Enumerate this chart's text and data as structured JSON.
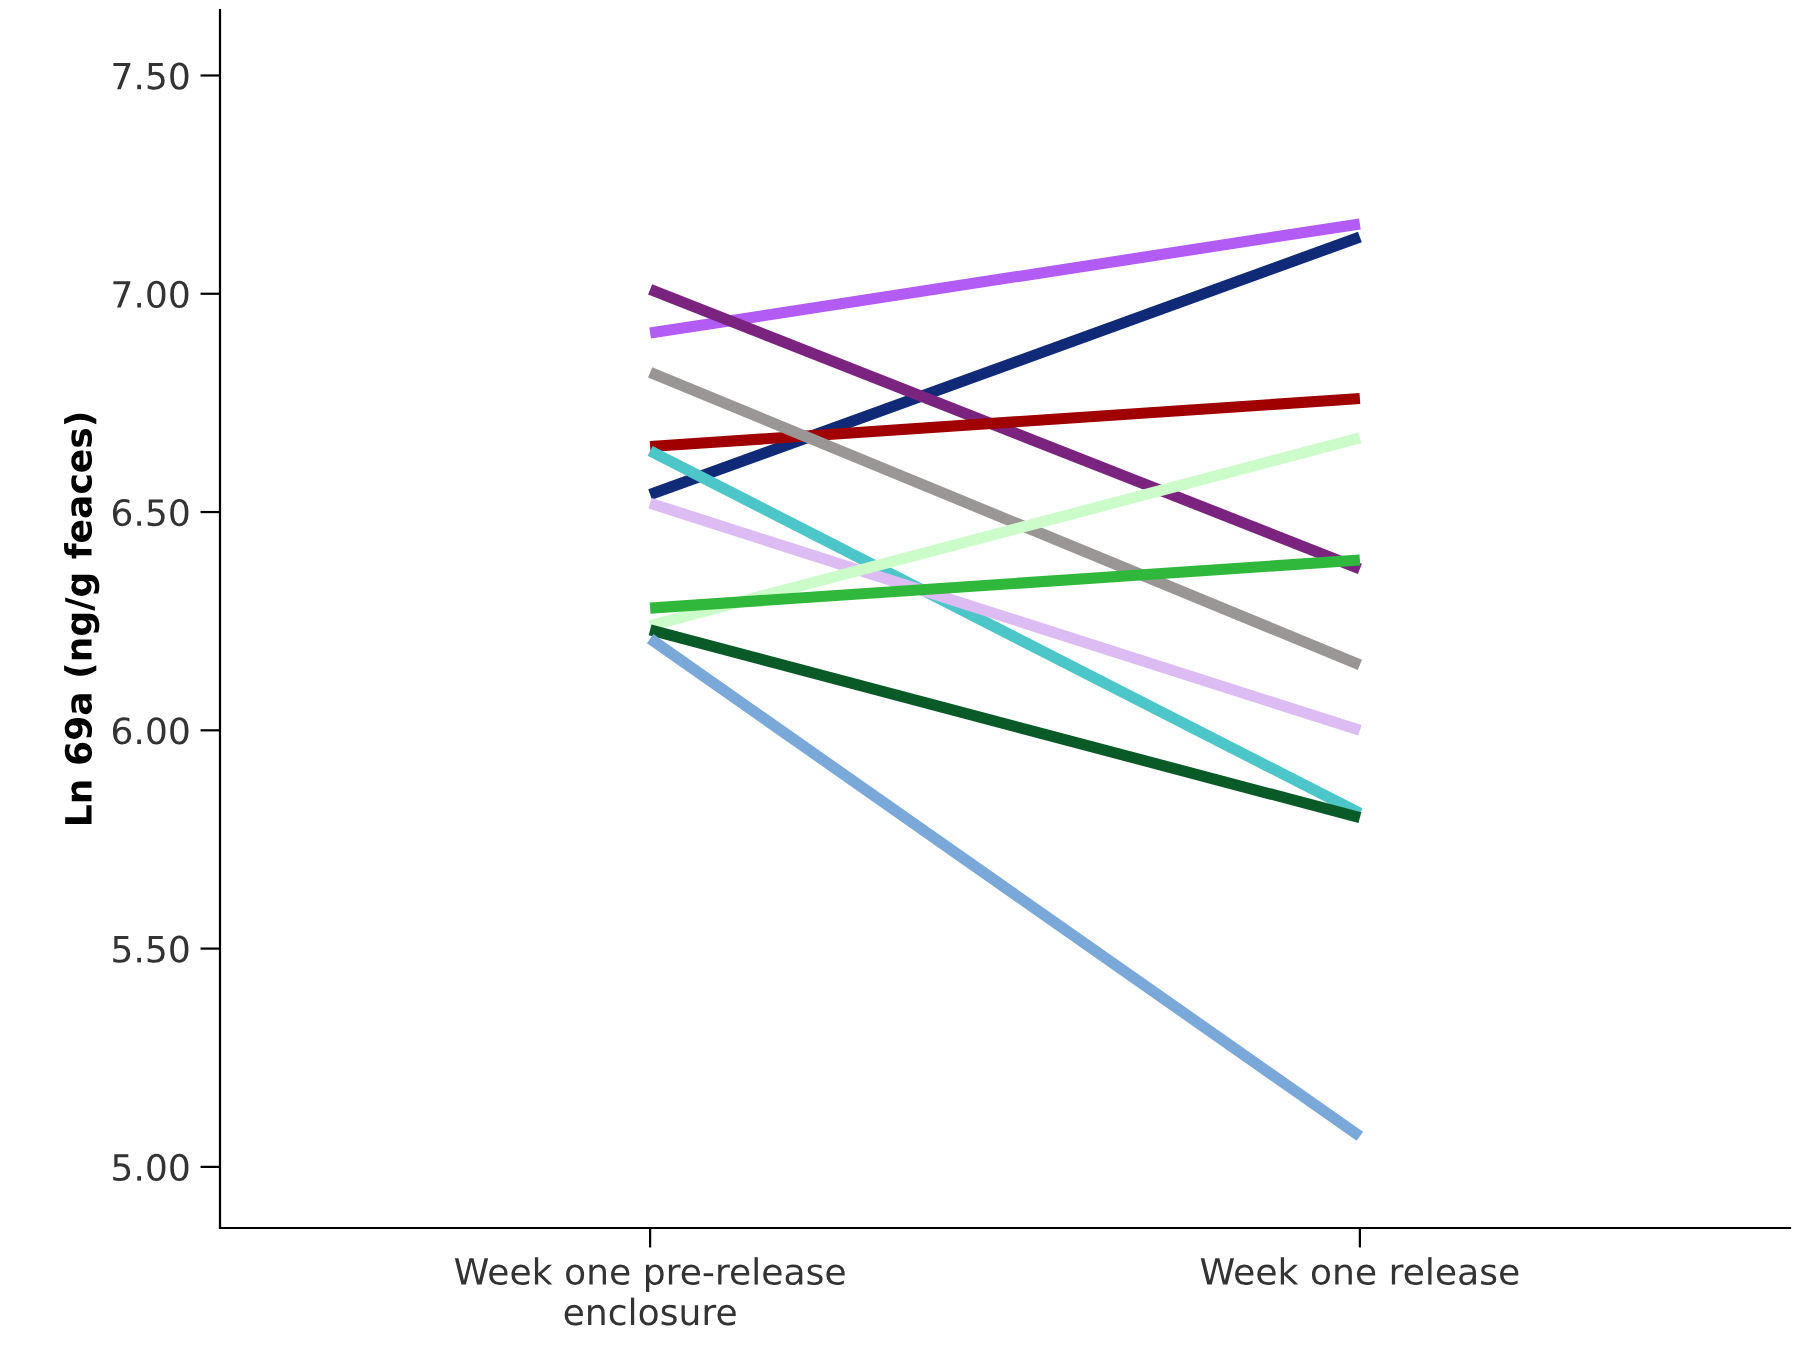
{
  "chart_data": {
    "type": "line",
    "ylabel": "Ln 69a (ng/g feaces)",
    "categories": [
      "Week one pre-release\nenclosure",
      "Week one release"
    ],
    "series": [
      {
        "color": "#b25cf5",
        "values": [
          6.91,
          7.16
        ]
      },
      {
        "color": "#102a78",
        "values": [
          6.54,
          7.13
        ]
      },
      {
        "color": "#7a2480",
        "values": [
          7.01,
          6.37
        ]
      },
      {
        "color": "#a00000",
        "values": [
          6.65,
          6.76
        ]
      },
      {
        "color": "#9a9696",
        "values": [
          6.82,
          6.15
        ]
      },
      {
        "color": "#4cc6c8",
        "values": [
          6.64,
          5.81
        ]
      },
      {
        "color": "#dcbcf2",
        "values": [
          6.52,
          6.0
        ]
      },
      {
        "color": "#cdfccb",
        "values": [
          6.24,
          6.67
        ]
      },
      {
        "color": "#30b83c",
        "values": [
          6.28,
          6.39
        ]
      },
      {
        "color": "#0a5a28",
        "values": [
          6.23,
          5.8
        ]
      },
      {
        "color": "#7aa8d8",
        "values": [
          6.21,
          5.07
        ]
      }
    ],
    "ylim": [
      4.86,
      7.65
    ],
    "yticks": [
      {
        "value": 5.0,
        "label": "5.00"
      },
      {
        "value": 5.5,
        "label": "5.50"
      },
      {
        "value": 6.0,
        "label": "6.00"
      },
      {
        "value": 6.5,
        "label": "6.50"
      },
      {
        "value": 7.0,
        "label": "7.00"
      },
      {
        "value": 7.5,
        "label": "7.50"
      }
    ],
    "grid": false,
    "marker": "none",
    "line_style": "solid"
  }
}
